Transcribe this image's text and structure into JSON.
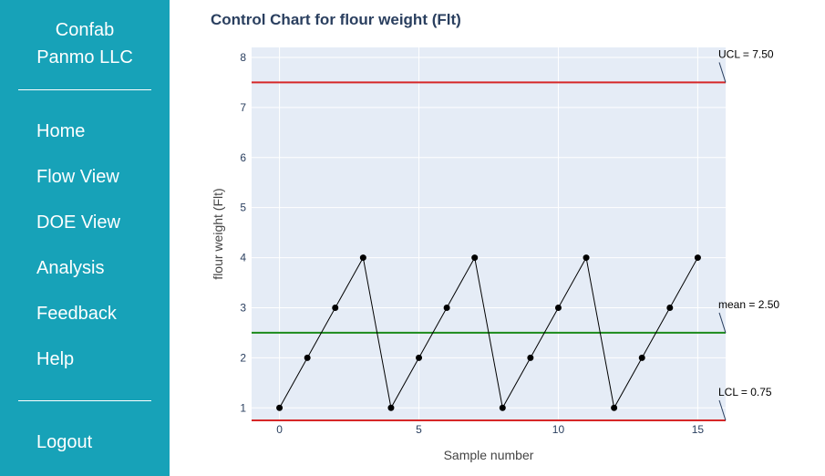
{
  "sidebar": {
    "brand_line1": "Confab",
    "brand_line2": "Panmo LLC",
    "items": [
      {
        "label": "Home",
        "name": "sidebar-item-home"
      },
      {
        "label": "Flow View",
        "name": "sidebar-item-flow-view"
      },
      {
        "label": "DOE View",
        "name": "sidebar-item-doe-view"
      },
      {
        "label": "Analysis",
        "name": "sidebar-item-analysis"
      },
      {
        "label": "Feedback",
        "name": "sidebar-item-feedback"
      },
      {
        "label": "Help",
        "name": "sidebar-item-help"
      }
    ],
    "logout_label": "Logout"
  },
  "colors": {
    "sidebar_bg": "#17a2b8",
    "plot_bg": "#e5ecf6",
    "ucl_line": "#d62728",
    "lcl_line": "#d62728",
    "mean_line": "#1a8a1a",
    "series": "#000000"
  },
  "chart_data": {
    "type": "line",
    "title": "Control Chart for flour weight (Flt)",
    "xlabel": "Sample number",
    "ylabel": "flour weight (Flt)",
    "x": [
      0,
      1,
      2,
      3,
      4,
      5,
      6,
      7,
      8,
      9,
      10,
      11,
      12,
      13,
      14,
      15
    ],
    "y": [
      1,
      2,
      3,
      4,
      1,
      2,
      3,
      4,
      1,
      2,
      3,
      4,
      1,
      2,
      3,
      4
    ],
    "xlim": [
      -1,
      16
    ],
    "ylim": [
      0.75,
      8.2
    ],
    "xticks": [
      0,
      5,
      10,
      15
    ],
    "yticks": [
      1,
      2,
      3,
      4,
      5,
      6,
      7,
      8
    ],
    "grid": true,
    "reference_lines": [
      {
        "label": "UCL = 7.50",
        "value": 7.5,
        "color": "#d62728"
      },
      {
        "label": "mean = 2.50",
        "value": 2.5,
        "color": "#1a8a1a"
      },
      {
        "label": "LCL = 0.75",
        "value": 0.75,
        "color": "#d62728"
      }
    ]
  }
}
